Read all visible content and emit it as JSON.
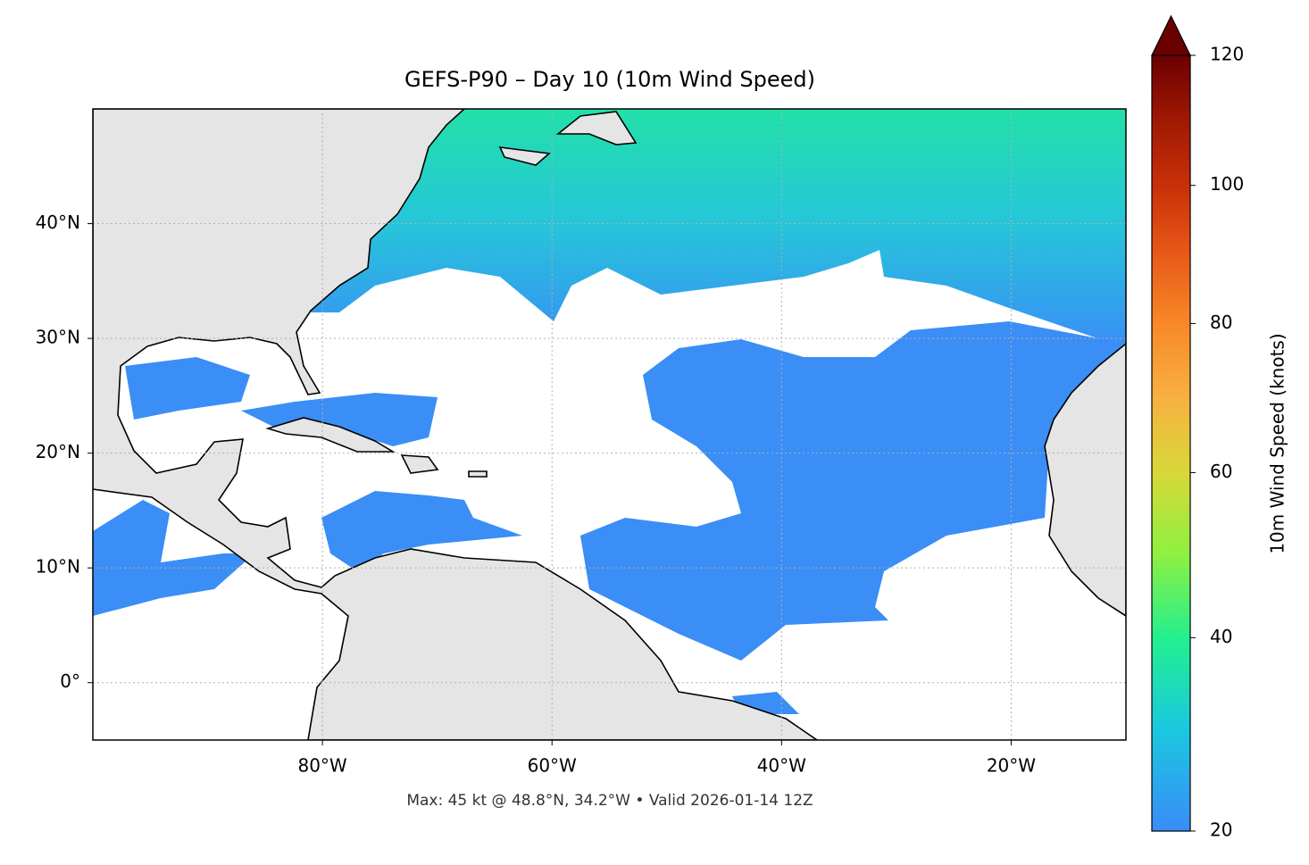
{
  "title": "GEFS-P90 – Day 10 (10m Wind Speed)",
  "map": {
    "lonlim": [
      -100,
      -10
    ],
    "latlim": [
      -5,
      50
    ],
    "lonticks": [
      {
        "value": -80,
        "label": "80°W"
      },
      {
        "value": -60,
        "label": "60°W"
      },
      {
        "value": -40,
        "label": "40°W"
      },
      {
        "value": -20,
        "label": "20°W"
      }
    ],
    "latticks": [
      {
        "value": 0,
        "label": "0°"
      },
      {
        "value": 10,
        "label": "10°N"
      },
      {
        "value": 20,
        "label": "20°N"
      },
      {
        "value": 30,
        "label": "30°N"
      },
      {
        "value": 40,
        "label": "40°N"
      }
    ],
    "grid": true
  },
  "colorbar": {
    "label": "10m Wind Speed (knots)",
    "lim": [
      20,
      120
    ],
    "ticks": [
      20,
      40,
      60,
      80,
      100,
      120
    ],
    "norm": "power",
    "gamma": 0.7,
    "extend": "max",
    "colors": [
      "#3a8cf7",
      "#1ac8e0",
      "#22f08e",
      "#90f040",
      "#d8d838",
      "#f8b040",
      "#f88828",
      "#e85818",
      "#c83008",
      "#a01804",
      "#6a0000"
    ]
  },
  "footer": "Max: 45 kt @ 48.8°N, 34.2°W • Valid 2026-01-14 12Z"
}
